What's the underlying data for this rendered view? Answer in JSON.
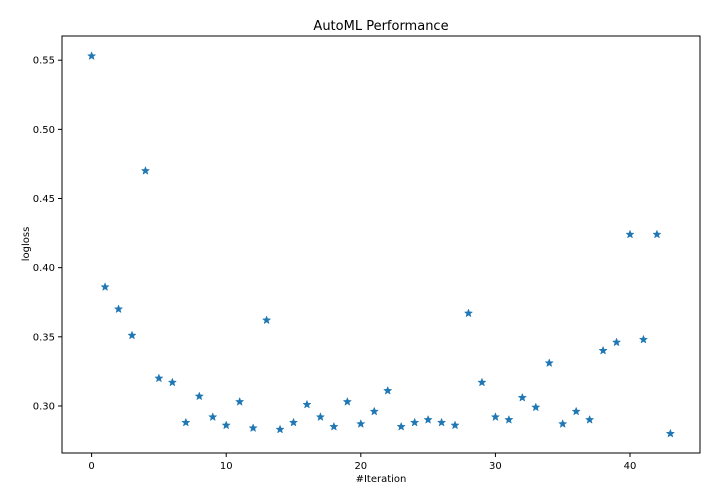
{
  "chart_data": {
    "type": "scatter",
    "title": "AutoML Performance",
    "xlabel": "#Iteration",
    "ylabel": "logloss",
    "xlim": [
      -2.2,
      45.2
    ],
    "ylim": [
      0.266,
      0.5675
    ],
    "xticks": [
      0,
      10,
      20,
      30,
      40
    ],
    "yticks": [
      0.3,
      0.35,
      0.4,
      0.45,
      0.5,
      0.55
    ],
    "xtick_labels": [
      "0",
      "10",
      "20",
      "30",
      "40"
    ],
    "ytick_labels": [
      "0.30",
      "0.35",
      "0.40",
      "0.45",
      "0.50",
      "0.55"
    ],
    "grid": false,
    "marker": "star",
    "marker_color": "#1f77b4",
    "series": [
      {
        "x": [
          0,
          1,
          2,
          3,
          4,
          5,
          6,
          7,
          8,
          9,
          10,
          11,
          12,
          13,
          14,
          15,
          16,
          17,
          18,
          19,
          20,
          21,
          22,
          23,
          24,
          25,
          26,
          27,
          28,
          29,
          30,
          31,
          32,
          33,
          34,
          35,
          36,
          37,
          38,
          39,
          40,
          41,
          42,
          43
        ],
        "y": [
          0.553,
          0.386,
          0.37,
          0.351,
          0.47,
          0.32,
          0.317,
          0.288,
          0.307,
          0.292,
          0.286,
          0.303,
          0.284,
          0.362,
          0.283,
          0.288,
          0.301,
          0.292,
          0.285,
          0.303,
          0.287,
          0.296,
          0.311,
          0.285,
          0.288,
          0.29,
          0.288,
          0.286,
          0.367,
          0.317,
          0.292,
          0.29,
          0.306,
          0.299,
          0.331,
          0.287,
          0.296,
          0.29,
          0.34,
          0.346,
          0.424,
          0.348,
          0.424,
          0.28
        ]
      }
    ]
  }
}
